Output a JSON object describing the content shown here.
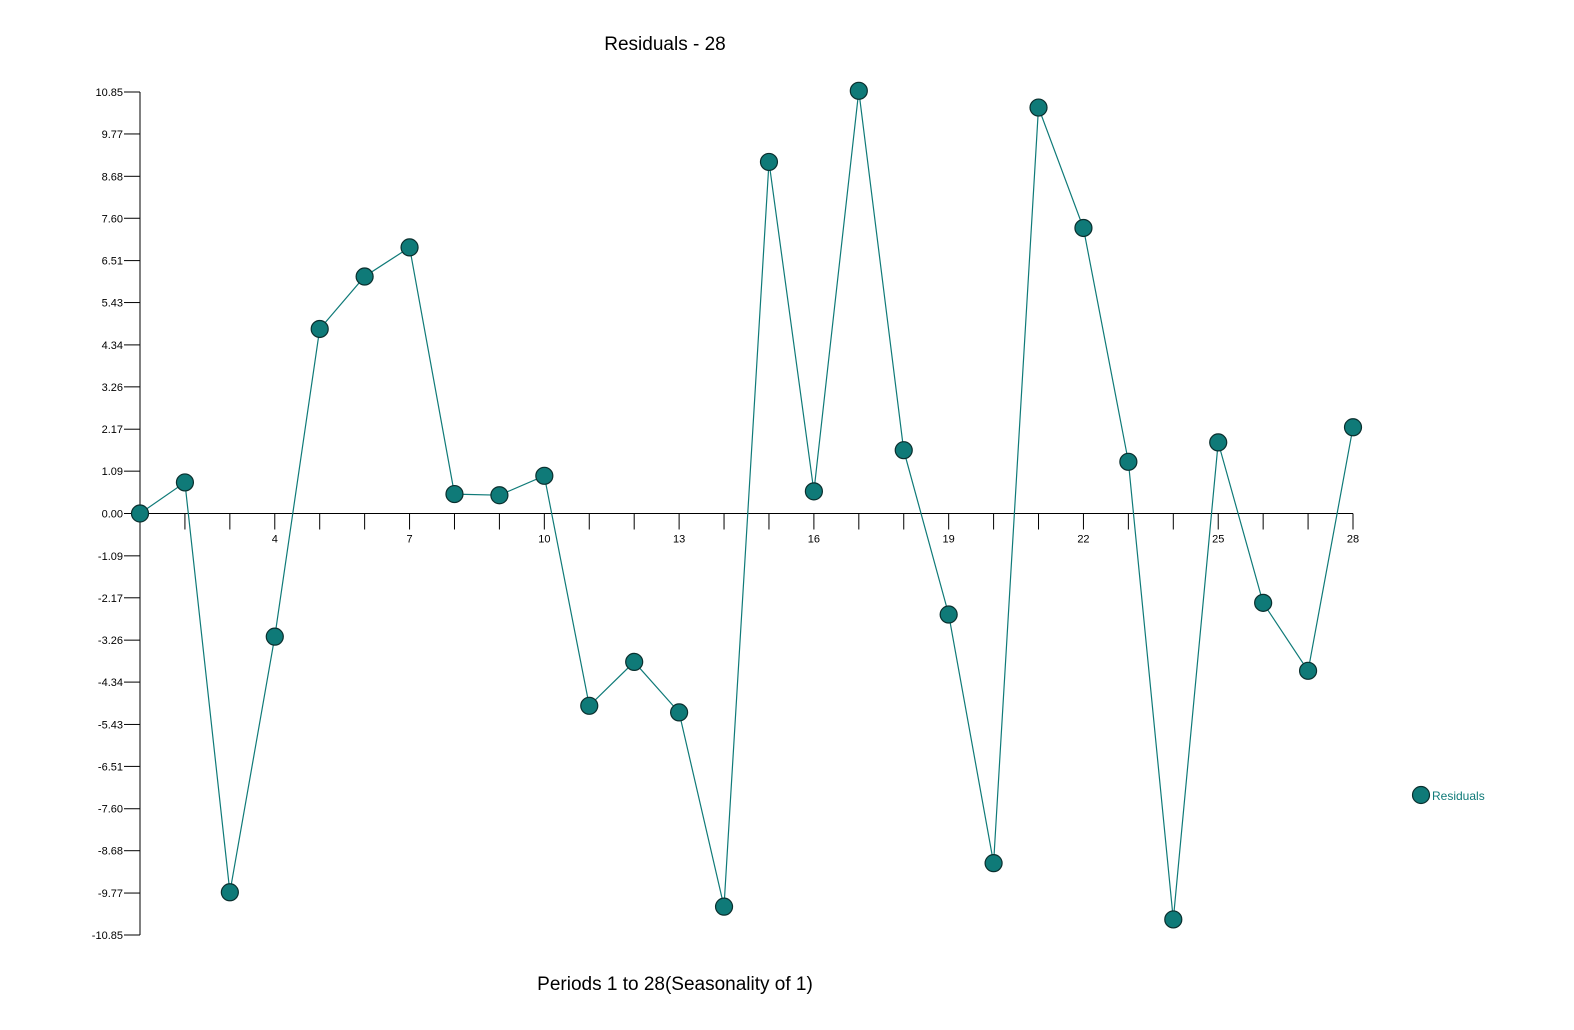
{
  "chart_data": {
    "type": "line",
    "title": "Residuals - 28",
    "xlabel": "Periods 1 to 28(Seasonality of 1)",
    "ylabel": "",
    "ylim": [
      -10.85,
      10.85
    ],
    "xlim": [
      1,
      28
    ],
    "grid": false,
    "legend_position": "right",
    "y_tick_labels": [
      "10.85",
      "9.77",
      "8.68",
      "7.60",
      "6.51",
      "5.43",
      "4.34",
      "3.26",
      "2.17",
      "1.09",
      "0.00",
      "-1.09",
      "-2.17",
      "-3.26",
      "-4.34",
      "-5.43",
      "-6.51",
      "-7.60",
      "-8.68",
      "-9.77",
      "-10.85"
    ],
    "x_tick_labels": [
      "4",
      "7",
      "10",
      "13",
      "16",
      "19",
      "22",
      "25",
      "28"
    ],
    "series": [
      {
        "name": "Residuals",
        "color": "#0f7a78",
        "x": [
          1,
          2,
          3,
          4,
          5,
          6,
          7,
          8,
          9,
          10,
          11,
          12,
          13,
          14,
          15,
          16,
          17,
          18,
          19,
          20,
          21,
          22,
          23,
          24,
          25,
          26,
          27,
          28
        ],
        "values": [
          0.0,
          0.8,
          -9.75,
          -3.17,
          4.75,
          6.1,
          6.85,
          0.5,
          0.47,
          0.97,
          -4.95,
          -3.82,
          -5.12,
          -10.12,
          9.05,
          0.57,
          10.88,
          1.63,
          -2.6,
          -9.0,
          10.45,
          7.35,
          1.33,
          -10.45,
          1.83,
          -2.3,
          -4.05,
          2.22
        ]
      }
    ]
  }
}
